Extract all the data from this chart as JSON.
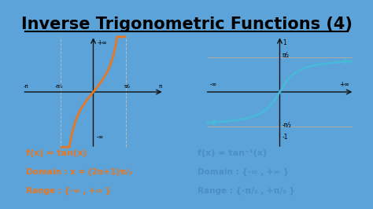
{
  "title": "Inverse Trigonometric Functions (4)",
  "title_fontsize": 15,
  "background_outer": "#5ba3d9",
  "background_inner": "#eef6ff",
  "tan_color": "#e87722",
  "arctan_color": "#4ab8d8",
  "axis_color": "#111111",
  "text_color_orange": "#e87722",
  "text_color_blue": "#4a90c4",
  "left_label1": "f(x) = tan(x)",
  "left_label2": "Domain : x ≠ (2n+1)π/₂",
  "left_label3": "Range : {-∞ , +∞ }",
  "right_label1": "f(x) = tan⁻¹(x)",
  "right_label2": "Domain : {-∞ , +∞ }",
  "right_label3": "Range : {-π/₂ , +π/₂ }"
}
